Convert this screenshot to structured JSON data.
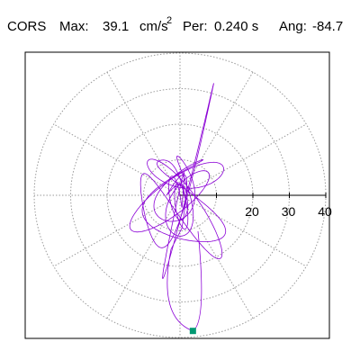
{
  "header": {
    "station": "CORS",
    "max_label": "Max:",
    "max_value": "39.1",
    "max_unit": "cm/s",
    "max_unit_exp": "2",
    "period_label": "Per:",
    "period_value": "0.240 s",
    "angle_label": "Ang:",
    "angle_value": "-84.7"
  },
  "chart_data": {
    "type": "scatter",
    "title": "",
    "xlabel": "",
    "ylabel": "",
    "polar": true,
    "r_ticks": [
      10,
      20,
      30,
      40
    ],
    "r_tick_labels": [
      "20",
      "30",
      "40"
    ],
    "rlim": [
      0,
      40
    ],
    "max_point_angle_deg": -84.7,
    "max_point_radius": 39.1,
    "grid": true,
    "series_color": "#8b00d6",
    "marker_color": "#009973",
    "frame_color": "#000000",
    "grid_color": "#9a9a9a"
  }
}
